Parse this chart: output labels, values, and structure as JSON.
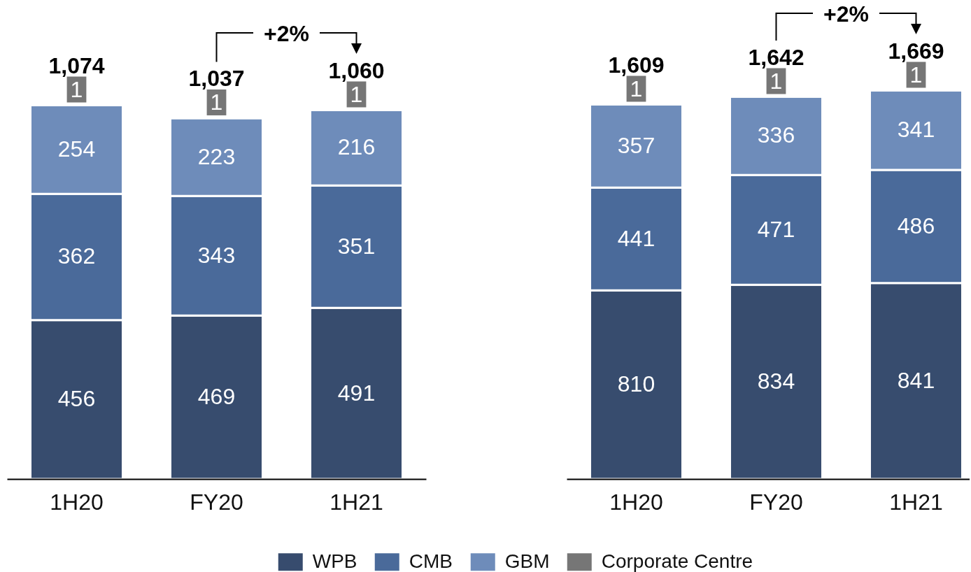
{
  "chart_data": [
    {
      "type": "bar",
      "stacked": true,
      "categories": [
        "1H20",
        "FY20",
        "1H21"
      ],
      "series": [
        {
          "name": "WPB",
          "color": "#374c6e",
          "values": [
            456,
            469,
            491
          ]
        },
        {
          "name": "CMB",
          "color": "#4a6a9a",
          "values": [
            362,
            343,
            351
          ]
        },
        {
          "name": "GBM",
          "color": "#6e8cba",
          "values": [
            254,
            223,
            216
          ]
        },
        {
          "name": "Corporate Centre",
          "color": "#767676",
          "values": [
            1,
            1,
            1
          ]
        }
      ],
      "data_labels": true,
      "totals": [
        "1,074",
        "1,037",
        "1,060"
      ],
      "annotations": [
        "+2%"
      ],
      "legend": "bottom"
    },
    {
      "type": "bar",
      "stacked": true,
      "categories": [
        "1H20",
        "FY20",
        "1H21"
      ],
      "series": [
        {
          "name": "WPB",
          "color": "#374c6e",
          "values": [
            810,
            834,
            841
          ]
        },
        {
          "name": "CMB",
          "color": "#4a6a9a",
          "values": [
            441,
            471,
            486
          ]
        },
        {
          "name": "GBM",
          "color": "#6e8cba",
          "values": [
            357,
            336,
            341
          ]
        },
        {
          "name": "Corporate Centre",
          "color": "#767676",
          "values": [
            1,
            1,
            1
          ]
        }
      ],
      "data_labels": true,
      "totals": [
        "1,609",
        "1,642",
        "1,669"
      ],
      "annotations": [
        "+2%"
      ],
      "legend": "bottom"
    }
  ]
}
